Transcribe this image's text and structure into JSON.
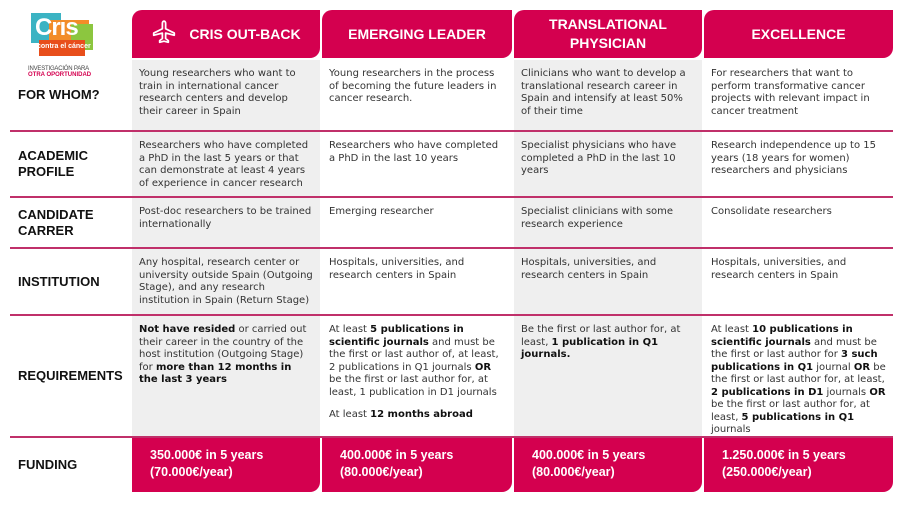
{
  "logo": {
    "word": "Cris",
    "sub": "contra el cáncer",
    "tagline1": "INVESTIGACIÓN PARA",
    "tagline2": "OTRA OPORTUNIDAD"
  },
  "colors": {
    "accent": "#d4004f",
    "divider": "#c0306a",
    "cell_gray": "#efefef"
  },
  "columns": [
    {
      "title": "CRIS OUT-BACK",
      "icon": "airplane-icon"
    },
    {
      "title": "EMERGING LEADER"
    },
    {
      "title": "TRANSLATIONAL PHYSICIAN"
    },
    {
      "title": "EXCELLENCE"
    }
  ],
  "rows": [
    {
      "label": "FOR WHOM?",
      "cells": [
        [
          [
            {
              "t": "Young researchers who want to train in international cancer research centers and develop their career in Spain"
            }
          ]
        ],
        [
          [
            {
              "t": "Young researchers in the process of becoming the future leaders in cancer research."
            }
          ]
        ],
        [
          [
            {
              "t": "Clinicians who want to develop a translational research career in Spain and intensify at least 50% of their time"
            }
          ]
        ],
        [
          [
            {
              "t": "For researchers that want to perform transformative cancer projects with relevant impact in cancer treatment"
            }
          ]
        ]
      ]
    },
    {
      "label": "ACADEMIC PROFILE",
      "cells": [
        [
          [
            {
              "t": "Researchers who have completed a PhD in the last 5 years or that can demonstrate at least 4 years of experience in cancer research"
            }
          ]
        ],
        [
          [
            {
              "t": "Researchers who have completed a PhD in the last 10 years"
            }
          ]
        ],
        [
          [
            {
              "t": "Specialist physicians who have completed a PhD in the last 10 years"
            }
          ]
        ],
        [
          [
            {
              "t": "Research independence up to 15 years (18 years for women) researchers and physicians"
            }
          ]
        ]
      ]
    },
    {
      "label": "CANDIDATE CARRER",
      "cells": [
        [
          [
            {
              "t": "Post-doc researchers to be trained internationally"
            }
          ]
        ],
        [
          [
            {
              "t": "Emerging researcher"
            }
          ]
        ],
        [
          [
            {
              "t": "Specialist clinicians with some research experience"
            }
          ]
        ],
        [
          [
            {
              "t": "Consolidate researchers"
            }
          ]
        ]
      ]
    },
    {
      "label": "INSTITUTION",
      "cells": [
        [
          [
            {
              "t": "Any hospital, research center or university outside Spain (Outgoing Stage), and any research institution in Spain (Return Stage)"
            }
          ]
        ],
        [
          [
            {
              "t": "Hospitals, universities, and research centers in Spain"
            }
          ]
        ],
        [
          [
            {
              "t": "Hospitals, universities, and research centers in Spain"
            }
          ]
        ],
        [
          [
            {
              "t": "Hospitals, universities, and research centers in Spain"
            }
          ]
        ]
      ]
    },
    {
      "label": "REQUIREMENTS",
      "cells": [
        [
          [
            {
              "t": "Not have resided",
              "b": true
            },
            {
              "t": " or carried out their career in the country of the host institution (Outgoing Stage) for "
            },
            {
              "t": "more than 12 months in the last 3 years",
              "b": true
            }
          ]
        ],
        [
          [
            {
              "t": "At least "
            },
            {
              "t": "5 publications in scientific journals",
              "b": true
            },
            {
              "t": " and must be the first or last author of, at least, 2 publications in Q1 journals "
            },
            {
              "t": "OR",
              "b": true
            },
            {
              "t": " be the first or last author for, at least, 1 publication in D1 journals"
            }
          ],
          [
            {
              "t": "At least "
            },
            {
              "t": "12 months abroad",
              "b": true
            }
          ]
        ],
        [
          [
            {
              "t": "Be the first or last author for, at least, "
            },
            {
              "t": "1 publication in Q1 journals.",
              "b": true
            }
          ]
        ],
        [
          [
            {
              "t": "At least "
            },
            {
              "t": "10 publications in scientific journals",
              "b": true
            },
            {
              "t": " and must be the first or last author for "
            },
            {
              "t": "3 such publications in Q1",
              "b": true
            },
            {
              "t": " journal "
            },
            {
              "t": "OR",
              "b": true
            },
            {
              "t": " be the first or last author for, at least, "
            },
            {
              "t": "2 publications in D1",
              "b": true
            },
            {
              "t": " journals "
            },
            {
              "t": "OR",
              "b": true
            },
            {
              "t": " be the first or last author for, at least, "
            },
            {
              "t": "5 publications in Q1",
              "b": true
            },
            {
              "t": " journals"
            }
          ]
        ]
      ]
    }
  ],
  "funding": {
    "label": "FUNDING",
    "values": [
      {
        "line1": "350.000€ in 5 years",
        "line2": "(70.000€/year)"
      },
      {
        "line1": "400.000€ in 5 years",
        "line2": "(80.000€/year)"
      },
      {
        "line1": "400.000€ in 5 years",
        "line2": "(80.000€/year)"
      },
      {
        "line1": "1.250.000€  in 5 years",
        "line2": "(250.000€/year)"
      }
    ]
  }
}
